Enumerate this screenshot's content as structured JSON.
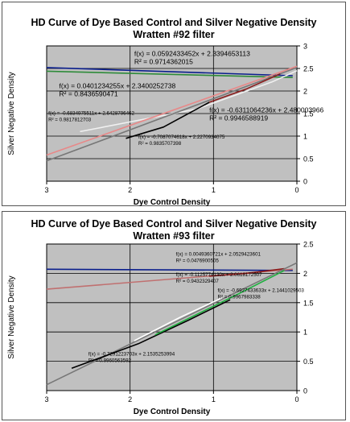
{
  "chart_data": [
    {
      "type": "line",
      "title": "HD Curve of Dye Based Control and Silver Negative Density",
      "subtitle": "Wratten #92 filter",
      "xlabel": "Dye Control Density",
      "ylabel": "Silver Negative Density",
      "xlim": [
        3,
        0
      ],
      "ylim": [
        0,
        3
      ],
      "x_ticks": [
        "3",
        "2",
        "1",
        "0"
      ],
      "y_ticks": [
        "0",
        "0.5",
        "1",
        "1.5",
        "2",
        "2.5",
        "3"
      ],
      "grid": true,
      "background": "#c0c0c0",
      "series": [
        {
          "color": "#0a1e8c",
          "x": [
            3.0,
            0.05
          ],
          "y": [
            2.52,
            2.34
          ]
        },
        {
          "color": "#2e8b3a",
          "x": [
            3.0,
            0.05
          ],
          "y": [
            2.44,
            2.3
          ]
        },
        {
          "color": "#f0f0f0",
          "x": [
            2.6,
            1.2,
            0.3,
            0.0
          ],
          "y": [
            1.1,
            1.6,
            2.2,
            2.45
          ]
        },
        {
          "color": "#777777",
          "x": [
            3.0,
            0.0
          ],
          "y": [
            0.45,
            2.52
          ]
        },
        {
          "color": "#e88888",
          "x": [
            3.0,
            0.0
          ],
          "y": [
            0.58,
            2.55
          ]
        },
        {
          "color": "#000000",
          "x": [
            2.05,
            1.6,
            1.05
          ],
          "y": [
            0.95,
            1.2,
            1.75
          ]
        },
        {
          "color": "#8b1a1a",
          "x": [
            1.05,
            0.6,
            0.2
          ],
          "y": [
            1.75,
            2.05,
            2.38
          ]
        }
      ],
      "annotations": [
        {
          "eq": "f(x) = 0.0592433452x + 2.3394653113",
          "r2": "R² = 0.9714362015",
          "size": "large",
          "x": 1.95,
          "y": 2.78
        },
        {
          "eq": "f(x) = 0.0401234255x + 2.3400252738",
          "r2": "R² = 0.8436590471",
          "size": "large",
          "x": 2.85,
          "y": 2.06
        },
        {
          "eq": "f(x) = -0.6311064236x + 2.480003966",
          "r2": "R² = 0.9946588919",
          "size": "large",
          "x": 1.05,
          "y": 1.53
        },
        {
          "eq": "f(x) = -0.6834975511x + 2.6428796462",
          "r2": "R² = 0.9817812703",
          "size": "small",
          "x": 2.98,
          "y": 1.47
        },
        {
          "eq": "f(x) = -0.7087074618x + 2.2270934075",
          "r2": "R² = 0.9835707398",
          "size": "small",
          "x": 1.9,
          "y": 0.95
        }
      ]
    },
    {
      "type": "line",
      "title": "HD Curve of Dye Based Control and Silver Negative Density",
      "subtitle": "Wratten #93 filter",
      "xlabel": "Dye Control Density",
      "ylabel": "Silver Negative Density",
      "xlim": [
        3,
        0
      ],
      "ylim": [
        0,
        2.5
      ],
      "x_ticks": [
        "3",
        "2",
        "1",
        "0"
      ],
      "y_ticks": [
        "0",
        "0.5",
        "1",
        "1.5",
        "2",
        "2.5"
      ],
      "grid": true,
      "background": "#c0c0c0",
      "series": [
        {
          "color": "#0a1e8c",
          "x": [
            3.0,
            0.05
          ],
          "y": [
            2.07,
            2.05
          ]
        },
        {
          "color": "#c07070",
          "x": [
            3.0,
            0.05
          ],
          "y": [
            1.73,
            2.07
          ]
        },
        {
          "color": "#8b1a1a",
          "x": [
            1.05,
            0.6,
            0.15
          ],
          "y": [
            1.95,
            2.0,
            2.08
          ]
        },
        {
          "color": "#777777",
          "x": [
            3.0,
            0.0
          ],
          "y": [
            0.1,
            2.18
          ]
        },
        {
          "color": "#ffffff",
          "x": [
            1.95,
            1.4,
            0.9
          ],
          "y": [
            0.85,
            1.25,
            1.58
          ]
        },
        {
          "color": "#000000",
          "x": [
            2.7,
            1.9,
            1.3,
            0.8
          ],
          "y": [
            0.38,
            0.8,
            1.2,
            1.55
          ]
        },
        {
          "color": "#20b040",
          "x": [
            1.7,
            1.2,
            0.7,
            0.15
          ],
          "y": [
            0.95,
            1.3,
            1.65,
            2.05
          ]
        }
      ],
      "annotations": [
        {
          "eq": "f(x) = 0.0049360721x + 2.0529423601",
          "r2": "R² = 0.0476900505",
          "size": "small",
          "x": 1.45,
          "y": 2.3
        },
        {
          "eq": "f(x) = -0.1125774130x + 2.0618172507",
          "r2": "R² = 0.9432329407",
          "size": "small",
          "x": 1.45,
          "y": 1.95
        },
        {
          "eq": "f(x) = -0.6927433633x + 2.1441029503",
          "r2": "R² = 0.9967983338",
          "size": "small",
          "x": 0.95,
          "y": 1.68
        },
        {
          "eq": "f(x) = -0.7291223703x + 2.1535253994",
          "r2": "R² = 0.9960563592",
          "size": "small",
          "x": 2.5,
          "y": 0.6
        }
      ]
    }
  ]
}
